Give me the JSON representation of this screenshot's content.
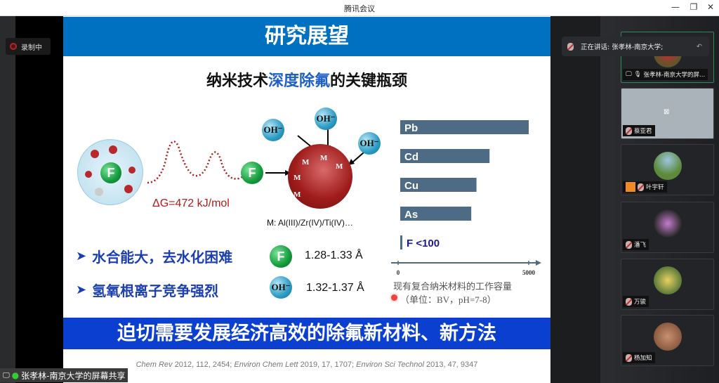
{
  "window": {
    "title": "腾讯会议",
    "minimize": "—",
    "restore": "❐",
    "close": "✕"
  },
  "recording": {
    "label": "录制中"
  },
  "speaker_banner": {
    "text": "正在讲话: 张孝林-南京大学;"
  },
  "share_label": "张孝林-南京大学的屏幕共享",
  "participants": [
    {
      "name": "张孝林-南京大学的屏...",
      "sharing": true
    },
    {
      "name": "蔡亚君",
      "camera_off": true
    },
    {
      "name": "叶宇轩"
    },
    {
      "name": "潘飞"
    },
    {
      "name": "万骏"
    },
    {
      "name": "杨加知"
    }
  ],
  "slide": {
    "title": "研究展望",
    "subtitle_pre": "纳米技术",
    "subtitle_hl": "深度除氟",
    "subtitle_post": "的关键瓶颈",
    "delta_g": "ΔG=472 kJ/mol",
    "f_label": "F",
    "oh_label": "OH⁻",
    "m_label": "M",
    "metals": "M: Al(III)/Zr(IV)/Ti(IV)…",
    "bullets": [
      {
        "text": "水合能大，去水化困难",
        "ion": "F",
        "value": "1.28-1.33 Å"
      },
      {
        "text": "氢氧根离子竞争强烈",
        "ion": "OH⁻",
        "value": "1.32-1.37 Å"
      }
    ],
    "banner": "迫切需要发展经济高效的除氟新材料、新方法",
    "refs": [
      {
        "journal": "Chem Rev",
        "cite": " 2012, 112, 2454; "
      },
      {
        "journal": "Environ Chem Lett",
        "cite": " 2019, 17, 1707; "
      },
      {
        "journal": "Environ Sci Technol",
        "cite": " 2013, 47, 9347"
      }
    ],
    "caption1": "现有复合纳米材料的工作容量",
    "caption2": "（单位：BV，pH=7-8）"
  },
  "chart_data": {
    "type": "bar",
    "orientation": "horizontal",
    "categories": [
      "Pb",
      "Cd",
      "Cu",
      "As",
      "F <100"
    ],
    "values": [
      5000,
      3500,
      3000,
      2800,
      100
    ],
    "xlim": [
      0,
      5000
    ],
    "xticks": [
      "0",
      "5000"
    ],
    "bar_color": "#4e6b86",
    "grid": false
  }
}
